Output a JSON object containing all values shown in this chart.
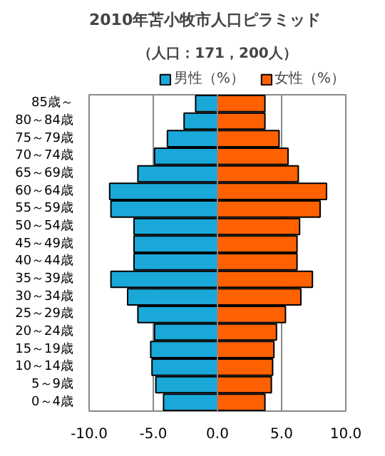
{
  "chart_data": {
    "type": "bar",
    "orientation": "horizontal",
    "title": "2010年苫小牧市人口ピラミッド",
    "subtitle": "（人口：171，200人）",
    "categories": [
      "85歳～",
      "80～84歳",
      "75～79歳",
      "70～74歳",
      "65～69歳",
      "60～64歳",
      "55～59歳",
      "50～54歳",
      "45～49歳",
      "40～44歳",
      "35～39歳",
      "30～34歳",
      "25～29歳",
      "20～24歳",
      "15～19歳",
      "10～14歳",
      "5～9歳",
      "0～4歳"
    ],
    "series": [
      {
        "name": "男性（%）",
        "color": "#1aa8d8",
        "values": [
          -1.7,
          -2.6,
          -3.9,
          -4.9,
          -6.2,
          -8.4,
          -8.3,
          -6.5,
          -6.5,
          -6.5,
          -8.3,
          -7.0,
          -6.2,
          -4.9,
          -5.2,
          -5.1,
          -4.8,
          -4.2
        ]
      },
      {
        "name": "女性（%）",
        "color": "#ff6000",
        "values": [
          3.7,
          3.7,
          4.8,
          5.5,
          6.3,
          8.5,
          8.0,
          6.4,
          6.2,
          6.2,
          7.4,
          6.5,
          5.3,
          4.6,
          4.4,
          4.3,
          4.2,
          3.7
        ]
      }
    ],
    "xlim": [
      -10,
      10
    ],
    "xticks": [
      {
        "value": -10,
        "label": "-10.0"
      },
      {
        "value": -5,
        "label": "-5.0"
      },
      {
        "value": 0,
        "label": "0.0"
      },
      {
        "value": 5,
        "label": "5.0"
      },
      {
        "value": 10,
        "label": "10.0"
      }
    ],
    "grid": "x",
    "legend": "top right",
    "stacked": true
  }
}
